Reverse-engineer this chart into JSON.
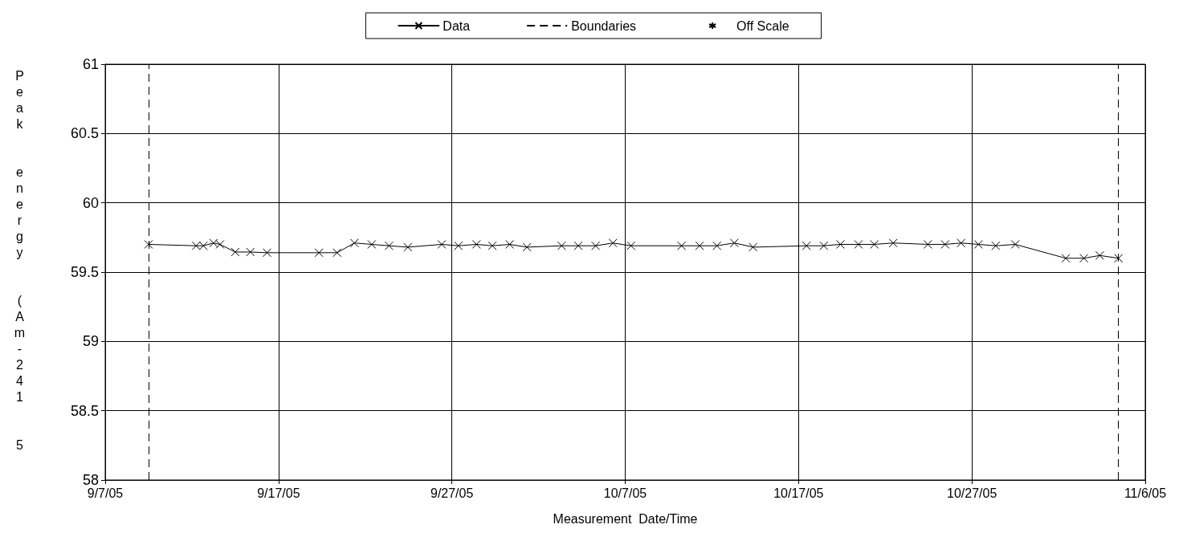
{
  "chart_data": {
    "type": "line",
    "xlabel": "Measurement  Date/Time",
    "ylabel": "Peak  energy  (Am-241  5",
    "series": [
      {
        "name": "Data",
        "color": "#000000",
        "marker": "cross",
        "line_style": "solid",
        "x": [
          "--09-09T12:00",
          "--09-12T06:00",
          "--09-12T16:00",
          "--09-13T06:00",
          "--09-13T15:00",
          "--09-14T12:00",
          "--09-15T09:00",
          "--09-16T08:00",
          "--09-19T08:00",
          "--09-20T09:00",
          "--09-21T09:00",
          "--09-22T09:00",
          "--09-23T09:00",
          "--09-24T11:00",
          "--09-26T10:00",
          "--09-27T09:00",
          "--09-28T10:00",
          "--09-29T08:00",
          "--09-30T08:00",
          "--10-01T08:00",
          "--10-03T08:00",
          "--10-04T07:00",
          "--10-05T07:00",
          "--10-06T07:00",
          "--10-07T08:00",
          "--10-10T06:00",
          "--10-11T07:00",
          "--10-12T07:00",
          "--10-13T07:00",
          "--10-14T09:00",
          "--10-17T11:00",
          "--10-18T11:00",
          "--10-19T10:00",
          "--10-20T11:00",
          "--10-21T09:00",
          "--10-22T11:00",
          "--10-24T11:00",
          "--10-25T11:00",
          "--10-26T09:00",
          "--10-27T09:00",
          "--10-28T09:00",
          "--10-29T12:00",
          "--11-01T10:00",
          "--11-02T11:00",
          "--11-03T09:00",
          "--11-04T11:00"
        ],
        "values": [
          59.7,
          59.69,
          59.69,
          59.71,
          59.7,
          59.645,
          59.645,
          59.64,
          59.64,
          59.64,
          59.71,
          59.7,
          59.69,
          59.68,
          59.7,
          59.69,
          59.7,
          59.69,
          59.7,
          59.68,
          59.69,
          59.69,
          59.69,
          59.71,
          59.69,
          59.69,
          59.69,
          59.69,
          59.71,
          59.68,
          59.69,
          59.69,
          59.7,
          59.7,
          59.7,
          59.71,
          59.7,
          59.7,
          59.71,
          59.7,
          59.69,
          59.7,
          59.6,
          59.6,
          59.62,
          59.6
        ]
      },
      {
        "name": "Off Scale",
        "color": "#000000",
        "marker": "star",
        "line_style": "none"
      }
    ],
    "xlim": [
      "--09-07",
      "--11-06"
    ],
    "xticks": [
      {
        "value": "--09-07",
        "label": "9/7/05"
      },
      {
        "value": "--09-17",
        "label": "9/17/05"
      },
      {
        "value": "--09-27",
        "label": "9/27/05"
      },
      {
        "value": "--10-07",
        "label": "10/7/05"
      },
      {
        "value": "--10-17",
        "label": "10/17/05"
      },
      {
        "value": "--10-27",
        "label": "10/27/05"
      },
      {
        "value": "--11-06",
        "label": "11/6/05"
      }
    ],
    "ref_lines": [
      {
        "axis": "x",
        "value": "--09-09T12:00",
        "label": "Boundaries",
        "color": "#000000",
        "line_style": "dashed"
      },
      {
        "axis": "x",
        "value": "--11-04T11:00",
        "color": "#000000",
        "line_style": "dashed"
      }
    ],
    "ylim": [
      58,
      61
    ],
    "yticks": [
      58,
      58.5,
      59,
      59.5,
      60,
      60.5,
      61
    ],
    "grid": true,
    "legend": "top"
  }
}
